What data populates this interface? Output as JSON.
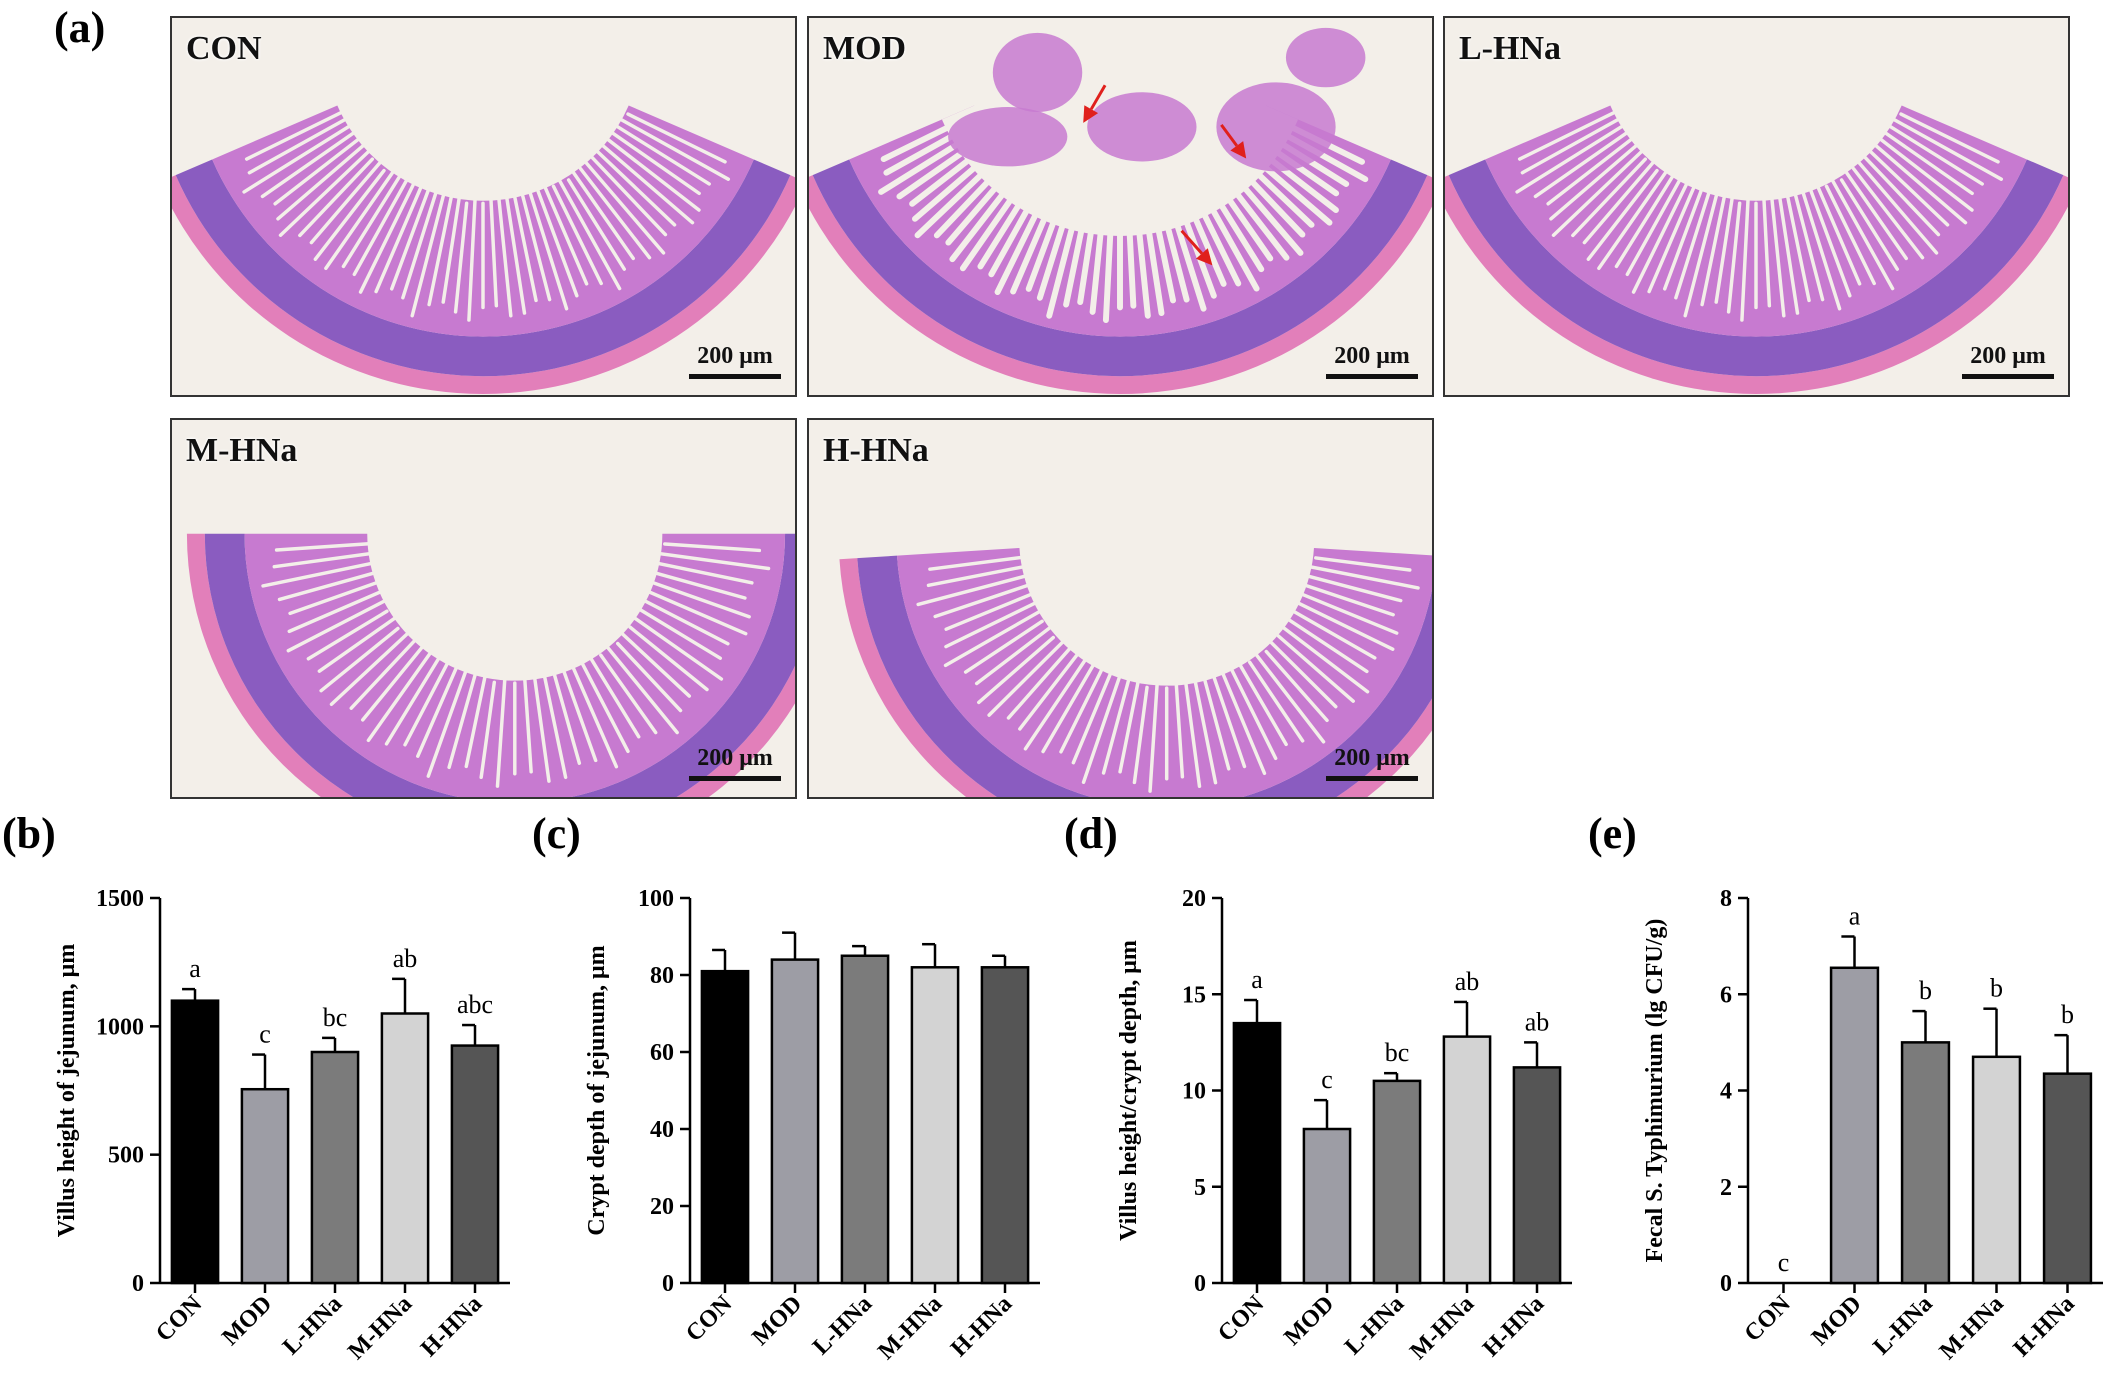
{
  "panels": {
    "a": "(a)",
    "b": "(b)",
    "c": "(c)",
    "d": "(d)",
    "e": "(e)"
  },
  "micrographs": [
    {
      "label": "CON",
      "scale": "200 μm",
      "arrows": 0
    },
    {
      "label": "MOD",
      "scale": "200 μm",
      "arrows": 3
    },
    {
      "label": "L-HNa",
      "scale": "200 μm",
      "arrows": 0
    },
    {
      "label": "M-HNa",
      "scale": "200 μm",
      "arrows": 0
    },
    {
      "label": "H-HNa",
      "scale": "200 μm",
      "arrows": 0
    }
  ],
  "colors": {
    "tissue": "#c77ad0",
    "crypt": "#8a5cc0",
    "muscle": "#e27fba",
    "lumen": "#f3efe9",
    "arrow": "#e0201c",
    "bars": [
      "#000000",
      "#9d9da5",
      "#7b7b7b",
      "#d3d3d3",
      "#555555"
    ]
  },
  "chart_data": [
    {
      "type": "bar",
      "ylabel": "Villus height of jejunum, μm",
      "categories": [
        "CON",
        "MOD",
        "L-HNa",
        "M-HNa",
        "H-HNa"
      ],
      "values": [
        1100,
        755,
        900,
        1050,
        925
      ],
      "errors": [
        45,
        135,
        55,
        135,
        80
      ],
      "letters": [
        "a",
        "c",
        "bc",
        "ab",
        "abc"
      ],
      "ylim": [
        0,
        1500
      ],
      "yticks": [
        "0",
        "500",
        "1000",
        "1500"
      ]
    },
    {
      "type": "bar",
      "ylabel": "Crypt depth of jejunum, μm",
      "categories": [
        "CON",
        "MOD",
        "L-HNa",
        "M-HNa",
        "H-HNa"
      ],
      "values": [
        81,
        84,
        85,
        82,
        82
      ],
      "errors": [
        5.5,
        7,
        2.5,
        6,
        3
      ],
      "letters": [
        "",
        "",
        "",
        "",
        ""
      ],
      "ylim": [
        0,
        100
      ],
      "yticks": [
        "0",
        "20",
        "40",
        "60",
        "80",
        "100"
      ]
    },
    {
      "type": "bar",
      "ylabel": "Villus height/crypt depth, μm",
      "categories": [
        "CON",
        "MOD",
        "L-HNa",
        "M-HNa",
        "H-HNa"
      ],
      "values": [
        13.5,
        8.0,
        10.5,
        12.8,
        11.2
      ],
      "errors": [
        1.2,
        1.5,
        0.4,
        1.8,
        1.3
      ],
      "letters": [
        "a",
        "c",
        "bc",
        "ab",
        "ab"
      ],
      "ylim": [
        0,
        20
      ],
      "yticks": [
        "0",
        "5",
        "10",
        "15",
        "20"
      ]
    },
    {
      "type": "bar",
      "ylabel": "Fecal S. Typhimurium (lg CFU/g)",
      "categories": [
        "CON",
        "MOD",
        "L-HNa",
        "M-HNa",
        "H-HNa"
      ],
      "values": [
        0,
        6.55,
        5.0,
        4.7,
        4.35
      ],
      "errors": [
        0,
        0.65,
        0.65,
        1.0,
        0.8
      ],
      "letters": [
        "c",
        "a",
        "b",
        "b",
        "b"
      ],
      "ylim": [
        0,
        8
      ],
      "yticks": [
        "0",
        "2",
        "4",
        "6",
        "8"
      ]
    }
  ]
}
